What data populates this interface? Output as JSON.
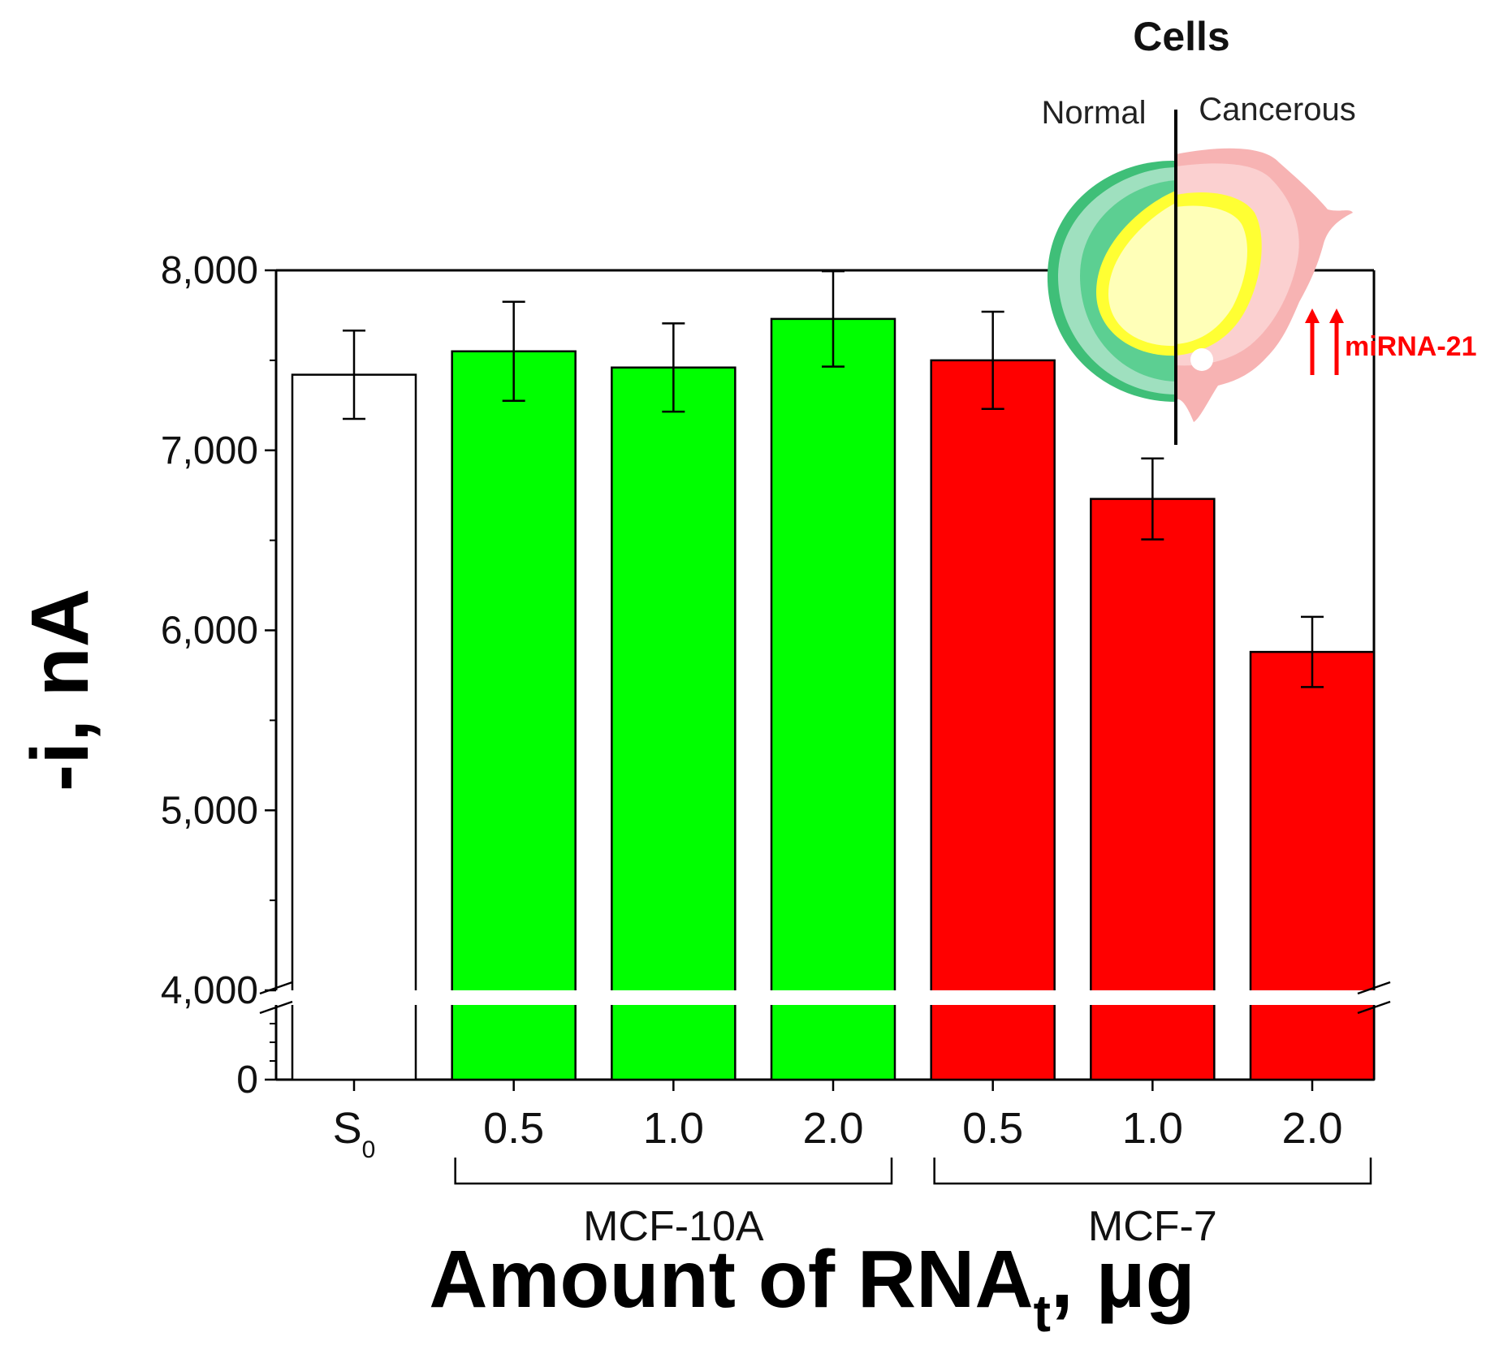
{
  "chart_data": {
    "type": "bar",
    "ylabel": "-i, nA",
    "xlabel_main": "Amount of RNA",
    "xlabel_sub": "t",
    "xlabel_tail": ", μg",
    "y_axis": {
      "broken": true,
      "lower_range": [
        0,
        4000
      ],
      "upper_range": [
        4000,
        8000
      ],
      "ticks": [
        {
          "value": 0,
          "label": "0"
        },
        {
          "value": 4000,
          "label": "4,000"
        },
        {
          "value": 5000,
          "label": "5,000"
        },
        {
          "value": 6000,
          "label": "6,000"
        },
        {
          "value": 7000,
          "label": "7,000"
        },
        {
          "value": 8000,
          "label": "8,000"
        }
      ]
    },
    "bars": [
      {
        "label": "S",
        "label_sub": "0",
        "group": "",
        "value": 7420,
        "error": 245,
        "color": "#ffffff"
      },
      {
        "label": "0.5",
        "group": "MCF-10A",
        "value": 7550,
        "error": 275,
        "color": "#00ff00"
      },
      {
        "label": "1.0",
        "group": "MCF-10A",
        "value": 7460,
        "error": 245,
        "color": "#00ff00"
      },
      {
        "label": "2.0",
        "group": "MCF-10A",
        "value": 7730,
        "error": 265,
        "color": "#00ff00"
      },
      {
        "label": "0.5",
        "group": "MCF-7",
        "value": 7500,
        "error": 270,
        "color": "#ff0000"
      },
      {
        "label": "1.0",
        "group": "MCF-7",
        "value": 6730,
        "error": 225,
        "color": "#ff0000"
      },
      {
        "label": "2.0",
        "group": "MCF-7",
        "value": 5880,
        "error": 195,
        "color": "#ff0000"
      }
    ],
    "groups": [
      "MCF-10A",
      "MCF-7"
    ],
    "grid": false
  },
  "inset": {
    "title": "Cells",
    "left_label": "Normal",
    "right_label": "Cancerous",
    "marker_label": "miRNA-21",
    "colors": {
      "normal_outer": "#9fe0bf",
      "normal_mid": "#3fbf78",
      "nucleus": "#ffff33",
      "nucleus_core": "#ffffb8",
      "cancer_outer": "#f7b3b3",
      "arrow": "#ff0000"
    }
  }
}
